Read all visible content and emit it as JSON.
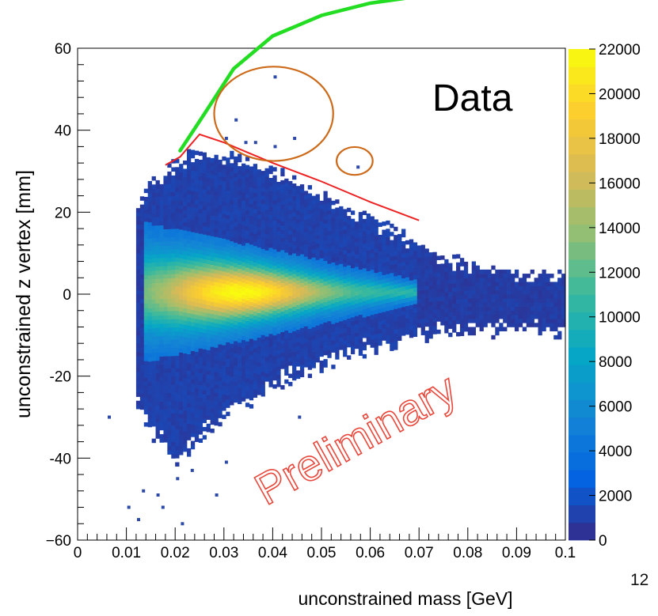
{
  "chart_data": {
    "type": "heatmap",
    "xlabel": "unconstrained mass [GeV]",
    "ylabel": "unconstrained z vertex [mm]",
    "xlim": [
      0,
      0.1
    ],
    "ylim": [
      -60,
      60
    ],
    "x_ticks": [
      "0",
      "0.01",
      "0.02",
      "0.03",
      "0.04",
      "0.05",
      "0.06",
      "0.07",
      "0.08",
      "0.09",
      "0.1"
    ],
    "y_ticks": [
      "−60",
      "-40",
      "-20",
      "0",
      "20",
      "40",
      "60"
    ],
    "colorbar": {
      "min": 0,
      "max": 22000,
      "ticks": [
        "0",
        "2000",
        "4000",
        "6000",
        "8000",
        "10000",
        "12000",
        "14000",
        "16000",
        "18000",
        "20000",
        "22000"
      ],
      "palette": [
        "#352a87",
        "#0363e1",
        "#1485d4",
        "#06a7c6",
        "#38b99e",
        "#92bf73",
        "#d9ba56",
        "#fcce2e",
        "#f9fb0e"
      ]
    },
    "peak": {
      "x": 0.033,
      "y": 0,
      "value": 22000
    },
    "core_band": {
      "x_start": 0.013,
      "x_end": 0.069,
      "half_width_start": 17,
      "half_width_end": 3
    },
    "data_envelope": [
      {
        "x": 0.012,
        "top": 22,
        "bottom": -28
      },
      {
        "x": 0.015,
        "top": 28,
        "bottom": -36
      },
      {
        "x": 0.02,
        "top": 33,
        "bottom": -42
      },
      {
        "x": 0.025,
        "top": 36,
        "bottom": -37
      },
      {
        "x": 0.03,
        "top": 35,
        "bottom": -32
      },
      {
        "x": 0.04,
        "top": 31,
        "bottom": -24
      },
      {
        "x": 0.05,
        "top": 25,
        "bottom": -19
      },
      {
        "x": 0.06,
        "top": 19,
        "bottom": -15
      },
      {
        "x": 0.07,
        "top": 13,
        "bottom": -12
      },
      {
        "x": 0.08,
        "top": 8,
        "bottom": -11
      },
      {
        "x": 0.09,
        "top": 6,
        "bottom": -11
      },
      {
        "x": 0.1,
        "top": 6,
        "bottom": -11
      }
    ],
    "outlier_points": [
      {
        "x": 0.0405,
        "y": 53
      },
      {
        "x": 0.0365,
        "y": 37
      },
      {
        "x": 0.0345,
        "y": 37
      },
      {
        "x": 0.0305,
        "y": 38
      },
      {
        "x": 0.0325,
        "y": 42.5
      },
      {
        "x": 0.0445,
        "y": 38
      },
      {
        "x": 0.0575,
        "y": 31
      },
      {
        "x": 0.0405,
        "y": 36
      },
      {
        "x": 0.0065,
        "y": -30
      },
      {
        "x": 0.0135,
        "y": -48
      },
      {
        "x": 0.0165,
        "y": -49
      },
      {
        "x": 0.0175,
        "y": -52
      },
      {
        "x": 0.0205,
        "y": -45
      },
      {
        "x": 0.0235,
        "y": -43
      },
      {
        "x": 0.0285,
        "y": -49
      },
      {
        "x": 0.0125,
        "y": -55
      },
      {
        "x": 0.0305,
        "y": -41
      },
      {
        "x": 0.0455,
        "y": -30
      },
      {
        "x": 0.0105,
        "y": -52
      },
      {
        "x": 0.0215,
        "y": -56
      }
    ],
    "annotations": {
      "data_label": "Data",
      "watermark": "Preliminary",
      "red_cut_curve": [
        [
          0.018,
          31.5
        ],
        [
          0.021,
          33.5
        ],
        [
          0.025,
          39
        ],
        [
          0.03,
          37
        ],
        [
          0.035,
          34.5
        ],
        [
          0.04,
          32
        ],
        [
          0.05,
          27.5
        ],
        [
          0.06,
          22.5
        ],
        [
          0.07,
          18
        ]
      ],
      "green_curve": [
        [
          0.021,
          35
        ],
        [
          0.026,
          44
        ],
        [
          0.032,
          55
        ],
        [
          0.04,
          63
        ],
        [
          0.05,
          68
        ],
        [
          0.06,
          71
        ],
        [
          0.072,
          73
        ]
      ],
      "ellipses": [
        {
          "cx": 0.0402,
          "cy": 44,
          "rx": 0.0122,
          "ry": 11.5
        },
        {
          "cx": 0.0568,
          "cy": 32.5,
          "rx": 0.0037,
          "ry": 3.4
        }
      ],
      "colors": {
        "red_curve": "#ee2222",
        "green_curve": "#22dd22",
        "ellipse": "#cc6a1a",
        "watermark": "#e8483c"
      }
    }
  },
  "slide": {
    "page_number": "12"
  }
}
